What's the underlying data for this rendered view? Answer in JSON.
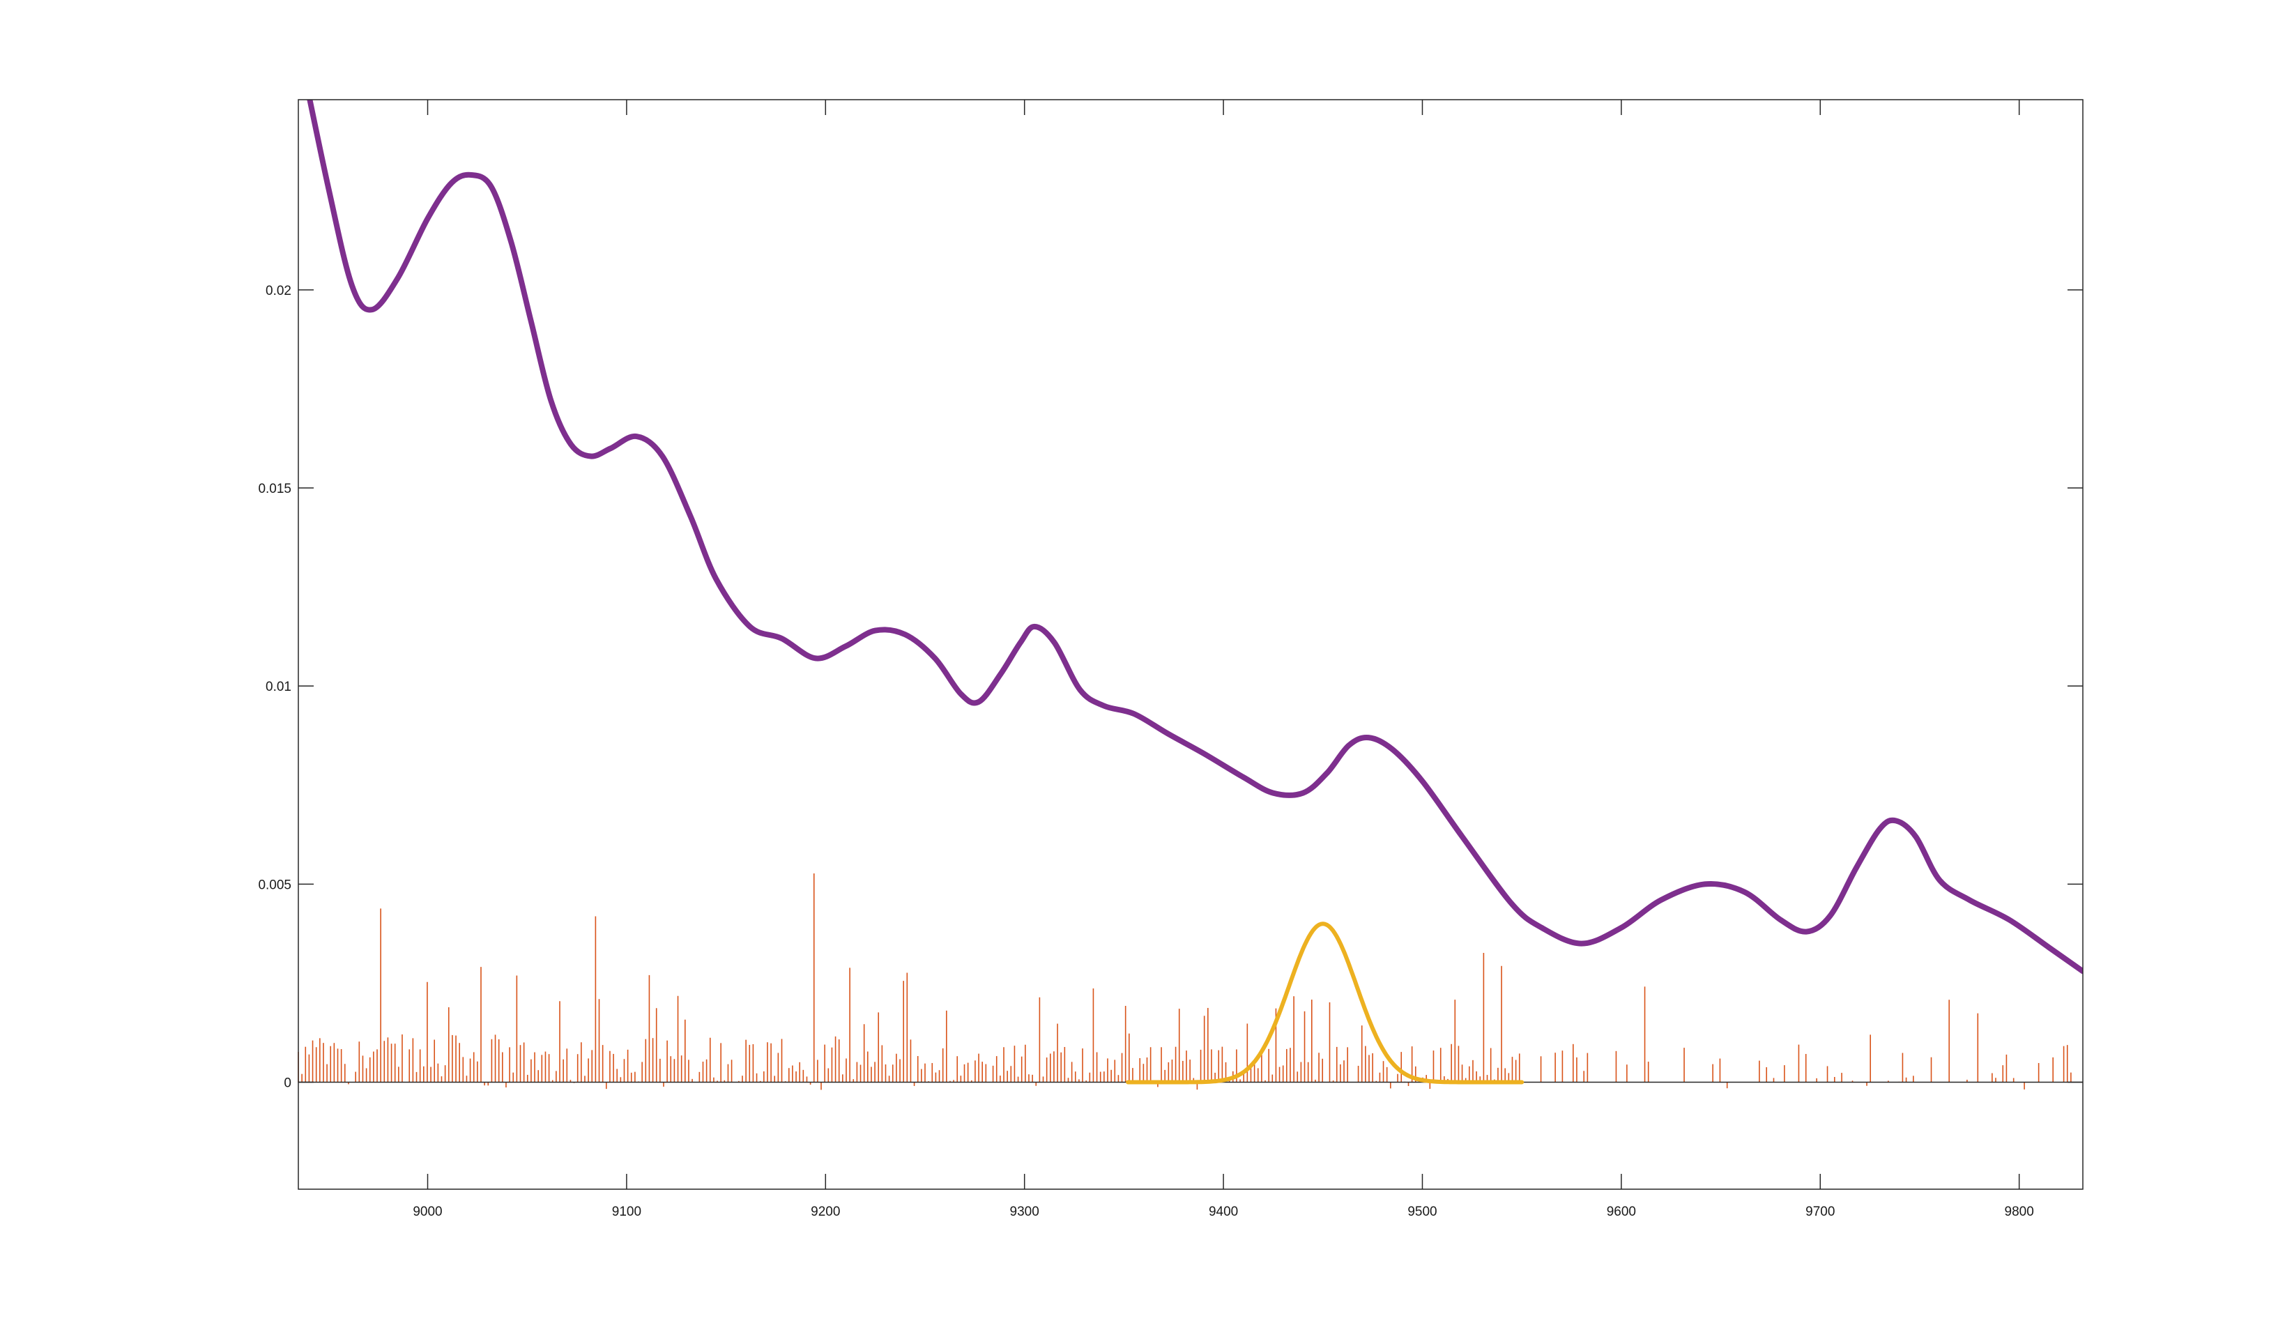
{
  "chart_data": {
    "type": "line",
    "title": "",
    "xlabel": "",
    "ylabel": "",
    "xlim": [
      8935,
      9832
    ],
    "ylim": [
      -0.0027,
      0.0248
    ],
    "grid": false,
    "x_ticks": [
      9000,
      9100,
      9200,
      9300,
      9400,
      9500,
      9600,
      9700,
      9800
    ],
    "x_tick_labels": [
      "9000",
      "9100",
      "9200",
      "9300",
      "9400",
      "9500",
      "9600",
      "9700",
      "9800"
    ],
    "y_ticks": [
      0,
      0.005,
      0.01,
      0.015,
      0.02
    ],
    "y_tick_labels": [
      "0",
      "0.005",
      "0.01",
      "0.015",
      "0.02"
    ],
    "series": [
      {
        "kind": "smooth-line",
        "color": "#7e2f8e",
        "points": [
          [
            8935,
            0.0262
          ],
          [
            8950,
            0.0226
          ],
          [
            8962,
            0.0201
          ],
          [
            8972,
            0.0195
          ],
          [
            8985,
            0.0203
          ],
          [
            9000,
            0.0218
          ],
          [
            9012,
            0.0227
          ],
          [
            9022,
            0.0229
          ],
          [
            9032,
            0.0226
          ],
          [
            9042,
            0.0212
          ],
          [
            9052,
            0.0192
          ],
          [
            9062,
            0.0172
          ],
          [
            9072,
            0.0161
          ],
          [
            9082,
            0.0158
          ],
          [
            9092,
            0.016
          ],
          [
            9105,
            0.0163
          ],
          [
            9118,
            0.0158
          ],
          [
            9132,
            0.0143
          ],
          [
            9145,
            0.0127
          ],
          [
            9162,
            0.0115
          ],
          [
            9178,
            0.0112
          ],
          [
            9195,
            0.0107
          ],
          [
            9210,
            0.011
          ],
          [
            9225,
            0.0114
          ],
          [
            9240,
            0.0113
          ],
          [
            9255,
            0.0107
          ],
          [
            9268,
            0.0098
          ],
          [
            9277,
            0.0096
          ],
          [
            9288,
            0.0103
          ],
          [
            9298,
            0.0111
          ],
          [
            9305,
            0.0115
          ],
          [
            9315,
            0.0111
          ],
          [
            9328,
            0.0099
          ],
          [
            9340,
            0.0095
          ],
          [
            9355,
            0.0093
          ],
          [
            9372,
            0.0088
          ],
          [
            9390,
            0.0083
          ],
          [
            9410,
            0.0077
          ],
          [
            9425,
            0.0073
          ],
          [
            9440,
            0.0073
          ],
          [
            9452,
            0.0078
          ],
          [
            9463,
            0.0085
          ],
          [
            9473,
            0.0087
          ],
          [
            9485,
            0.0084
          ],
          [
            9500,
            0.0076
          ],
          [
            9520,
            0.0062
          ],
          [
            9545,
            0.0045
          ],
          [
            9560,
            0.0039
          ],
          [
            9580,
            0.0035
          ],
          [
            9600,
            0.0039
          ],
          [
            9620,
            0.0046
          ],
          [
            9642,
            0.005
          ],
          [
            9662,
            0.0048
          ],
          [
            9680,
            0.0041
          ],
          [
            9693,
            0.0038
          ],
          [
            9705,
            0.0042
          ],
          [
            9718,
            0.0054
          ],
          [
            9730,
            0.0064
          ],
          [
            9738,
            0.0066
          ],
          [
            9748,
            0.0062
          ],
          [
            9760,
            0.0051
          ],
          [
            9775,
            0.0046
          ],
          [
            9795,
            0.0041
          ],
          [
            9815,
            0.0034
          ],
          [
            9832,
            0.0028
          ]
        ]
      },
      {
        "kind": "gaussian",
        "color": "#edb120",
        "center": 9450,
        "sigma": 17,
        "peak": 0.004,
        "x_range": [
          9352,
          9550
        ]
      },
      {
        "kind": "stems",
        "color": "#d95319",
        "x_range": [
          8935,
          9832
        ],
        "spacing": 1.8,
        "max_height": 0.0044,
        "min_height": -0.0002,
        "sparse_after": 9550
      }
    ]
  }
}
